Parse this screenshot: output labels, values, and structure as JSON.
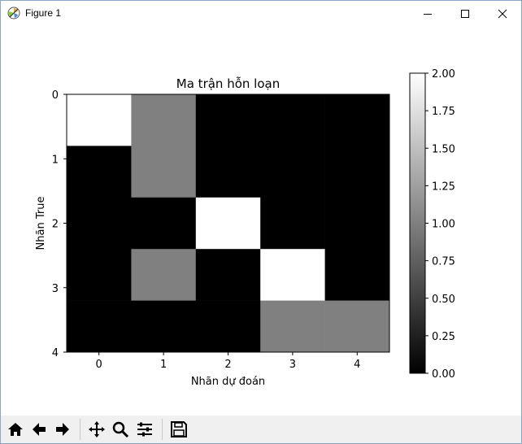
{
  "window": {
    "title": "Figure 1",
    "controls": [
      "minimize",
      "maximize",
      "close"
    ]
  },
  "toolbar": {
    "buttons": [
      {
        "name": "home-icon",
        "action": "Home"
      },
      {
        "name": "back-arrow-icon",
        "action": "Back"
      },
      {
        "name": "forward-arrow-icon",
        "action": "Forward"
      },
      {
        "name": "pan-icon",
        "action": "Pan"
      },
      {
        "name": "zoom-icon",
        "action": "Zoom"
      },
      {
        "name": "subplots-config-icon",
        "action": "Configure subplots"
      },
      {
        "name": "save-icon",
        "action": "Save"
      }
    ]
  },
  "chart_data": {
    "type": "heatmap",
    "title": "Ma trận hỗn loạn",
    "xlabel": "Nhãn dự đoán",
    "ylabel": "Nhãn True",
    "x_ticks": [
      "0",
      "1",
      "2",
      "3",
      "4"
    ],
    "y_ticks": [
      "0",
      "1",
      "2",
      "3",
      "4"
    ],
    "matrix": [
      [
        2,
        1,
        0,
        0,
        0
      ],
      [
        0,
        1,
        0,
        0,
        0
      ],
      [
        0,
        0,
        2,
        0,
        0
      ],
      [
        0,
        1,
        0,
        2,
        0
      ],
      [
        0,
        0,
        0,
        1,
        1
      ]
    ],
    "colormap": "gray",
    "vmin": 0,
    "vmax": 2,
    "colorbar_ticks": [
      "0.00",
      "0.25",
      "0.50",
      "0.75",
      "1.00",
      "1.25",
      "1.50",
      "1.75",
      "2.00"
    ],
    "colorbar_values": [
      0,
      0.25,
      0.5,
      0.75,
      1,
      1.25,
      1.5,
      1.75,
      2
    ]
  }
}
